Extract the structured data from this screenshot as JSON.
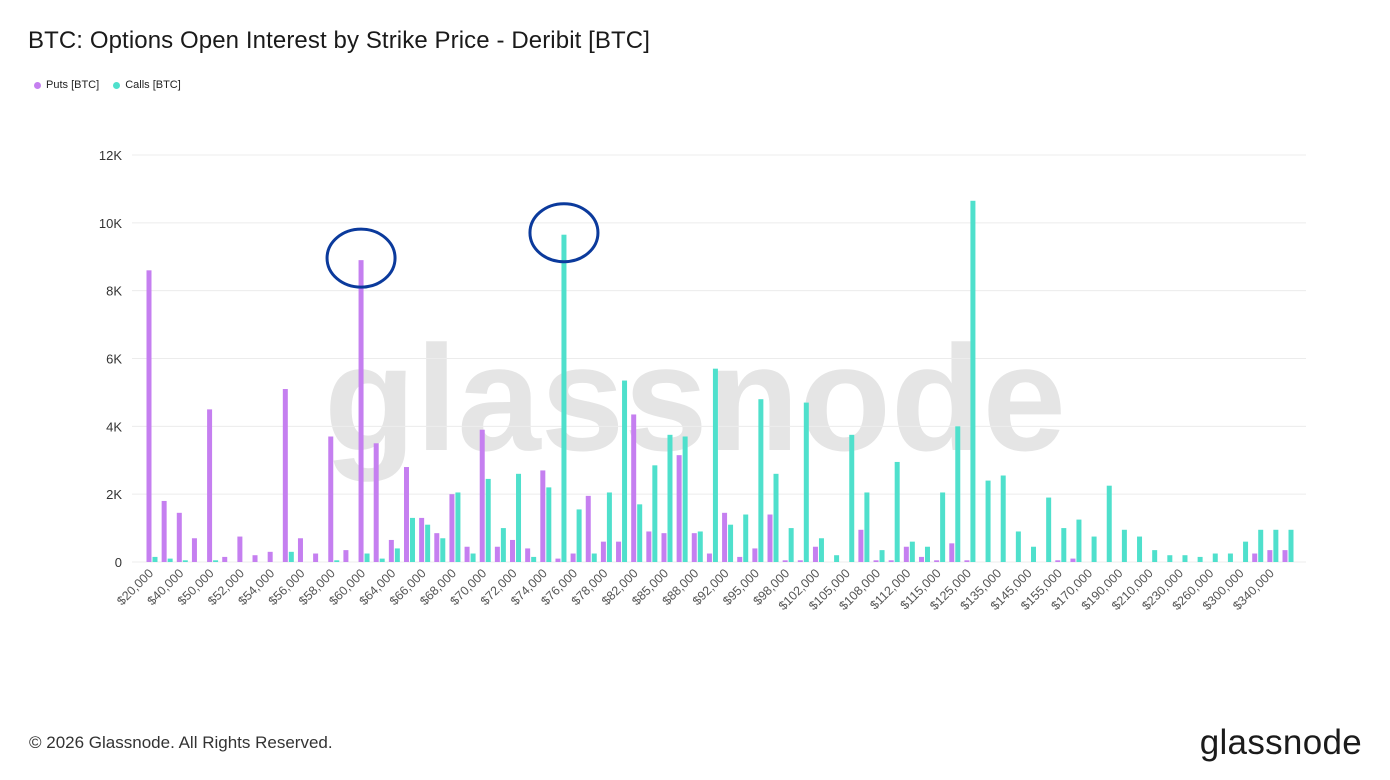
{
  "title": "BTC: Options Open Interest by Strike Price - Deribit [BTC]",
  "footer": "© 2026 Glassnode. All Rights Reserved.",
  "brand": "glassnode",
  "watermark": "glassnode",
  "colors": {
    "puts": "#c57ff0",
    "calls": "#4fe0cc",
    "annotation": "#0b3a9c",
    "grid": "#ececec"
  },
  "chart_data": {
    "type": "bar",
    "legend_position": "top-left",
    "grid": true,
    "ylim": [
      0,
      12000
    ],
    "yticks": [
      0,
      2000,
      4000,
      6000,
      8000,
      10000,
      12000
    ],
    "ytick_labels": [
      "0",
      "2K",
      "4K",
      "6K",
      "8K",
      "10K",
      "12K"
    ],
    "x_tick_labels": [
      "$20,000",
      "$40,000",
      "$50,000",
      "$52,000",
      "$54,000",
      "$56,000",
      "$58,000",
      "$60,000",
      "$64,000",
      "$66,000",
      "$68,000",
      "$70,000",
      "$72,000",
      "$74,000",
      "$76,000",
      "$78,000",
      "$82,000",
      "$85,000",
      "$88,000",
      "$92,000",
      "$95,000",
      "$98,000",
      "$102,000",
      "$105,000",
      "$108,000",
      "$112,000",
      "$115,000",
      "$125,000",
      "$135,000",
      "$145,000",
      "$155,000",
      "$170,000",
      "$190,000",
      "$210,000",
      "$230,000",
      "$260,000",
      "$300,000",
      "$340,000"
    ],
    "category_count": 76,
    "series": [
      {
        "name": "Puts [BTC]",
        "values": [
          8600,
          1800,
          1450,
          700,
          4500,
          150,
          750,
          200,
          300,
          5100,
          700,
          250,
          3700,
          350,
          8900,
          3500,
          650,
          2800,
          1300,
          850,
          2000,
          450,
          3900,
          450,
          650,
          400,
          2700,
          100,
          250,
          1950,
          600,
          600,
          4350,
          900,
          850,
          3150,
          850,
          250,
          1450,
          150,
          400,
          1400,
          50,
          50,
          450,
          0,
          0,
          950,
          50,
          50,
          450,
          150,
          50,
          550,
          50,
          0,
          0,
          0,
          0,
          0,
          50,
          100,
          0,
          0,
          0,
          0,
          0,
          0,
          0,
          0,
          0,
          0,
          0,
          250,
          350,
          350
        ]
      },
      {
        "name": "Calls [BTC]",
        "values": [
          150,
          100,
          50,
          0,
          50,
          0,
          0,
          0,
          0,
          300,
          0,
          0,
          50,
          0,
          250,
          100,
          400,
          1300,
          1100,
          700,
          2050,
          250,
          2450,
          1000,
          2600,
          150,
          2200,
          9650,
          1550,
          250,
          2050,
          5350,
          1700,
          2850,
          3750,
          3700,
          900,
          5700,
          1100,
          1400,
          4800,
          2600,
          1000,
          4700,
          700,
          200,
          3750,
          2050,
          350,
          2950,
          600,
          450,
          2050,
          4000,
          10650,
          2400,
          2550,
          900,
          450,
          1900,
          1000,
          1250,
          750,
          2250,
          950,
          750,
          350,
          200,
          200,
          150,
          250,
          250,
          600,
          950,
          950,
          950
        ]
      }
    ],
    "annotations": [
      {
        "type": "circle",
        "category_index": 14,
        "series": "Puts [BTC]",
        "value": 8900
      },
      {
        "type": "circle",
        "category_index": 27,
        "series": "Calls [BTC]",
        "value": 9650
      }
    ]
  }
}
